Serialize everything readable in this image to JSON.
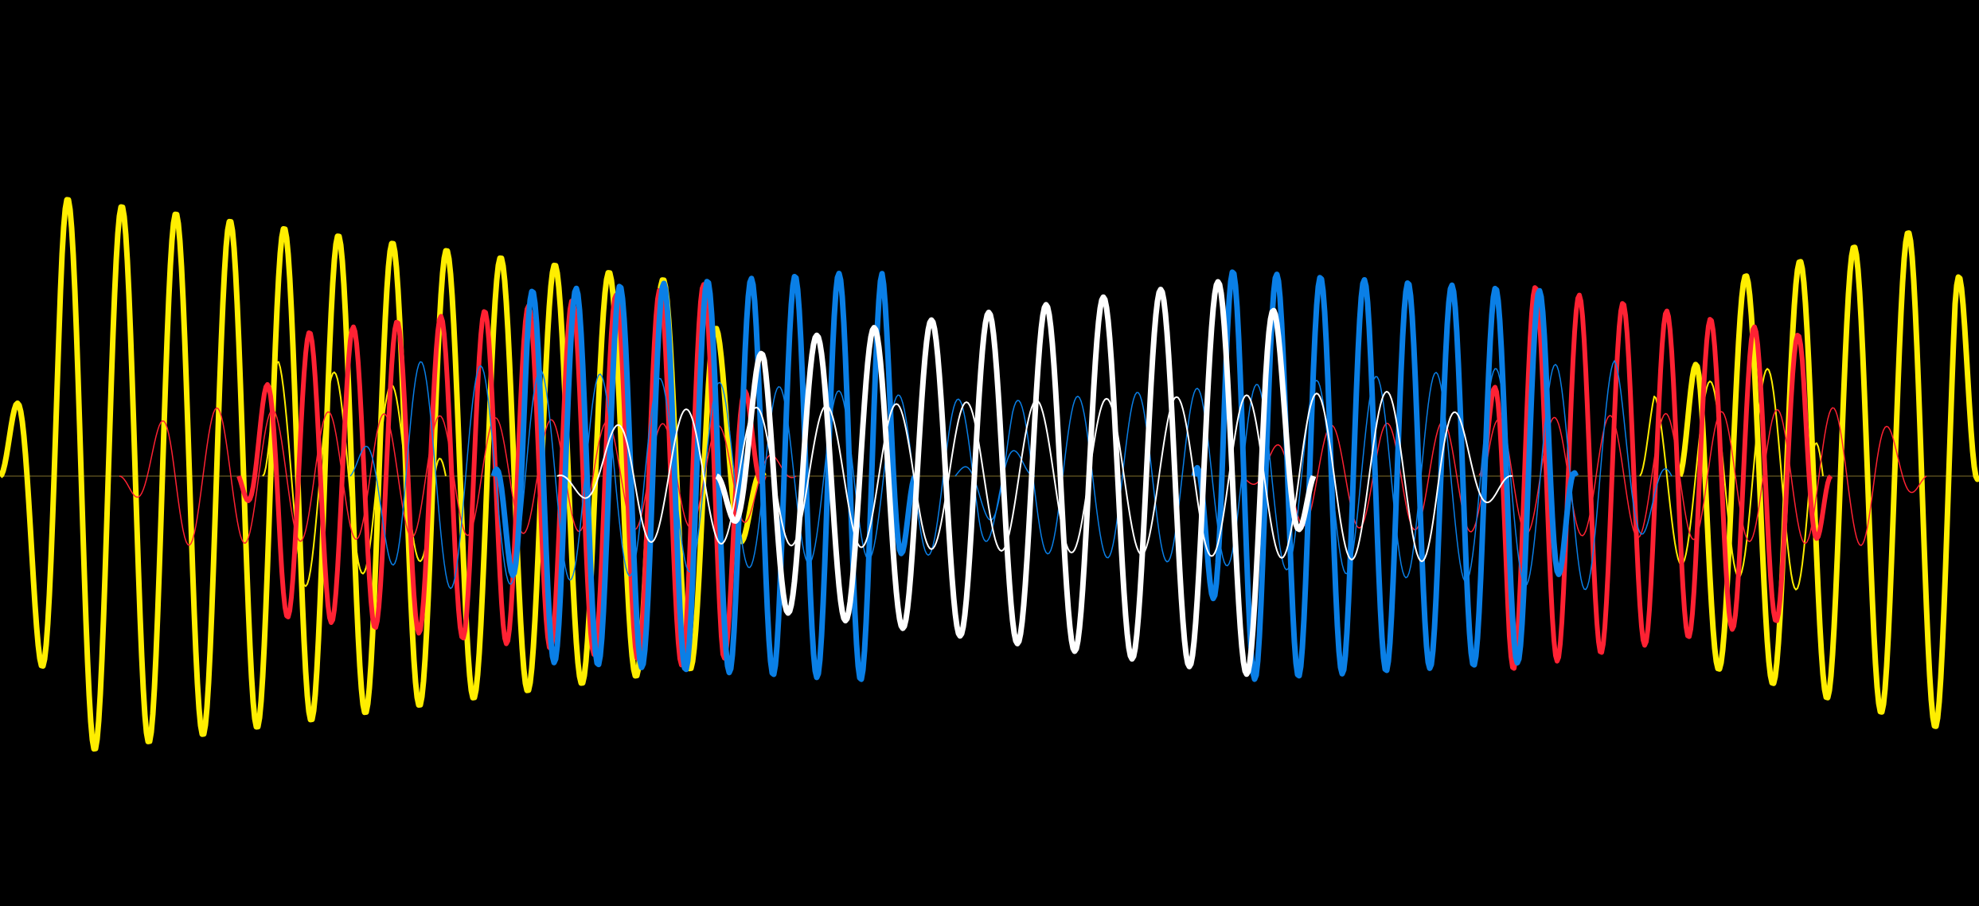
{
  "background_color": "#000000",
  "palette": {
    "yellow": "#FFEE00",
    "red": "#FF2233",
    "blue": "#0A7FE6",
    "white": "#FFFFFF",
    "baseline": "#7A6A2A"
  },
  "waves": [
    {
      "name": "yellow-wave-thick",
      "color": "yellow",
      "weight": "thick"
    },
    {
      "name": "yellow-wave-thin",
      "color": "yellow",
      "weight": "thin"
    },
    {
      "name": "red-wave-thick",
      "color": "red",
      "weight": "thick"
    },
    {
      "name": "red-wave-thin",
      "color": "red",
      "weight": "thin"
    },
    {
      "name": "blue-wave-thick",
      "color": "blue",
      "weight": "thick"
    },
    {
      "name": "blue-wave-thin",
      "color": "blue",
      "weight": "thin"
    },
    {
      "name": "white-wave-thick",
      "color": "white",
      "weight": "thick"
    },
    {
      "name": "white-wave-thin",
      "color": "white",
      "weight": "thin"
    }
  ]
}
